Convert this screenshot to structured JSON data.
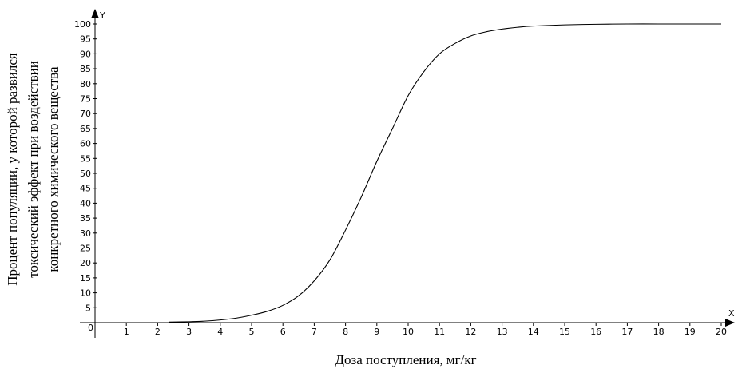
{
  "chart_data": {
    "type": "line",
    "xlabel": "Доза поступления, мг/кг",
    "ylabel_lines": [
      "Процент популяции, у которой развился",
      "токсический эффект при воздействии",
      "конкретного химического вещества"
    ],
    "x_axis_name": "X",
    "y_axis_name": "Y",
    "origin_label": "0",
    "xlim": [
      0,
      20
    ],
    "ylim": [
      0,
      100
    ],
    "x_ticks": [
      "1",
      "2",
      "3",
      "4",
      "5",
      "6",
      "7",
      "8",
      "9",
      "10",
      "11",
      "12",
      "13",
      "14",
      "15",
      "16",
      "17",
      "18",
      "19",
      "20"
    ],
    "y_ticks": [
      "5",
      "10",
      "15",
      "20",
      "25",
      "30",
      "35",
      "40",
      "45",
      "50",
      "55",
      "60",
      "65",
      "70",
      "75",
      "80",
      "85",
      "90",
      "95",
      "100"
    ],
    "grid": false,
    "series": [
      {
        "color": "#000000",
        "x": [
          2.35,
          3,
          3.5,
          4,
          4.5,
          5,
          5.5,
          6,
          6.5,
          7,
          7.5,
          8,
          8.5,
          9,
          9.5,
          10,
          10.5,
          11,
          11.5,
          12,
          12.5,
          13,
          13.5,
          14,
          15,
          16,
          17,
          18,
          19,
          20
        ],
        "y": [
          0.2,
          0.3,
          0.5,
          0.9,
          1.5,
          2.5,
          3.8,
          5.8,
          9,
          14,
          21,
          31,
          42,
          54,
          65,
          76,
          84,
          90,
          93.5,
          96,
          97.4,
          98.3,
          98.9,
          99.3,
          99.7,
          99.9,
          100,
          100,
          100,
          100
        ]
      }
    ]
  }
}
